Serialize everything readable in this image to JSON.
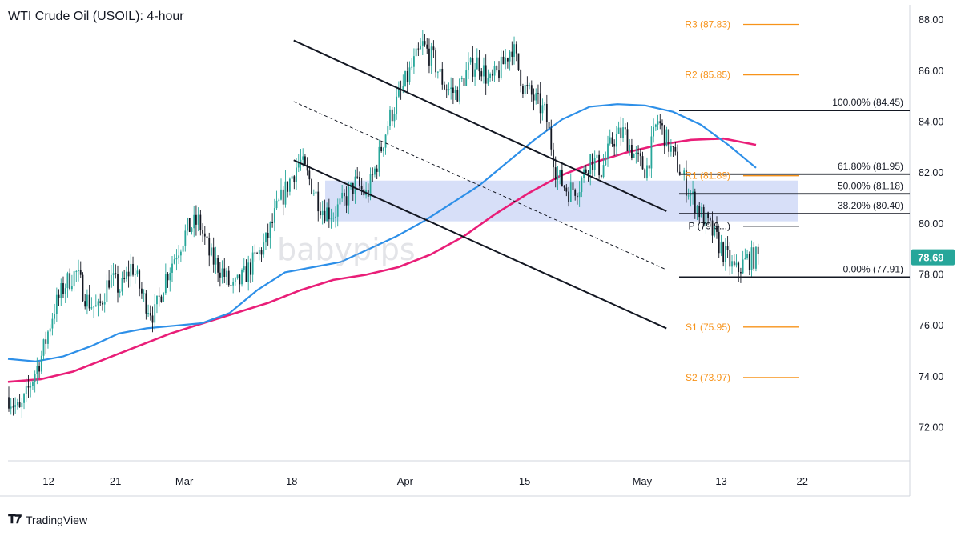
{
  "chart_data": {
    "type": "candlestick",
    "title": "WTI Crude Oil (USOIL): 4-hour",
    "x_tick_labels": [
      "12",
      "21",
      "Mar",
      "18",
      "Apr",
      "15",
      "May",
      "13",
      "22"
    ],
    "y_ticks": [
      "72.00",
      "74.00",
      "76.00",
      "78.00",
      "80.00",
      "82.00",
      "84.00",
      "86.00",
      "88.00"
    ],
    "ylim": [
      70.7,
      88.6
    ],
    "current_price": "78.69",
    "pivot_levels": [
      {
        "label": "R3 (87.83)",
        "value": 87.83
      },
      {
        "label": "R2 (85.85)",
        "value": 85.85
      },
      {
        "label": "R1 (81.89)",
        "value": 81.89
      },
      {
        "label": "P (79.9...)",
        "value": 79.91
      },
      {
        "label": "S1 (75.95)",
        "value": 75.95
      },
      {
        "label": "S2 (73.97)",
        "value": 73.97
      }
    ],
    "fib_levels": [
      {
        "label": "100.00% (84.45)",
        "value": 84.45
      },
      {
        "label": "61.80% (81.95)",
        "value": 81.95
      },
      {
        "label": "50.00% (81.18)",
        "value": 81.18
      },
      {
        "label": "38.20% (80.40)",
        "value": 80.4
      },
      {
        "label": "0.00% (77.91)",
        "value": 77.91
      }
    ],
    "price_path": [
      73.2,
      72.6,
      73.8,
      74.9,
      76.6,
      77.6,
      78.1,
      77.0,
      76.6,
      77.9,
      77.4,
      78.4,
      77.1,
      76.4,
      77.9,
      78.9,
      79.8,
      80.1,
      78.7,
      78.2,
      77.4,
      77.9,
      78.6,
      79.3,
      80.6,
      81.6,
      82.5,
      81.6,
      80.6,
      80.4,
      80.9,
      81.6,
      81.1,
      82.5,
      84.1,
      85.1,
      86.1,
      87.0,
      86.4,
      85.4,
      85.1,
      86.0,
      86.4,
      85.5,
      86.1,
      87.0,
      85.4,
      84.9,
      84.3,
      81.9,
      81.3,
      81.5,
      82.6,
      82.1,
      83.3,
      83.6,
      82.6,
      82.1,
      84.1,
      83.1,
      82.1,
      81.1,
      80.3,
      79.6,
      78.8,
      78.1,
      78.6,
      78.7
    ],
    "sma_blue": [
      74.7,
      74.6,
      74.8,
      75.2,
      75.7,
      75.9,
      76.0,
      76.1,
      76.5,
      77.4,
      78.1,
      78.3,
      78.5,
      79.0,
      79.5,
      80.1,
      80.8,
      81.5,
      82.4,
      83.3,
      84.1,
      84.6,
      84.7,
      84.65,
      84.4,
      83.9,
      83.1,
      82.2
    ],
    "sma_pink": [
      73.8,
      73.9,
      74.2,
      74.7,
      75.2,
      75.7,
      76.1,
      76.5,
      76.9,
      77.4,
      77.8,
      78.0,
      78.3,
      78.8,
      79.5,
      80.4,
      81.2,
      81.9,
      82.4,
      82.8,
      83.1,
      83.3,
      83.35,
      83.1
    ],
    "support_zone": [
      80.1,
      81.7
    ],
    "channel": {
      "upper": [
        [
          14.1,
          87.2
        ],
        [
          32.5,
          80.5
        ]
      ],
      "lower": [
        [
          14.1,
          82.5
        ],
        [
          32.5,
          75.9
        ]
      ],
      "midline": [
        [
          14.1,
          84.8
        ],
        [
          32.5,
          78.2
        ]
      ]
    },
    "x_tick_positions": [
      2.0,
      5.3,
      8.7,
      14.0,
      19.6,
      25.5,
      31.3,
      35.2,
      39.2
    ]
  },
  "brand": {
    "name": "TradingView"
  },
  "watermark": {
    "text": "babypips"
  },
  "colors": {
    "bull": "#26a69a",
    "bear": "#131722",
    "sma_blue": "#2d8fe8",
    "sma_pink": "#e91e78",
    "pivot": "#f7931a",
    "pivot_text": "#f7931a",
    "zone": "#c9d4f5",
    "price_tag": "#26a69a"
  }
}
